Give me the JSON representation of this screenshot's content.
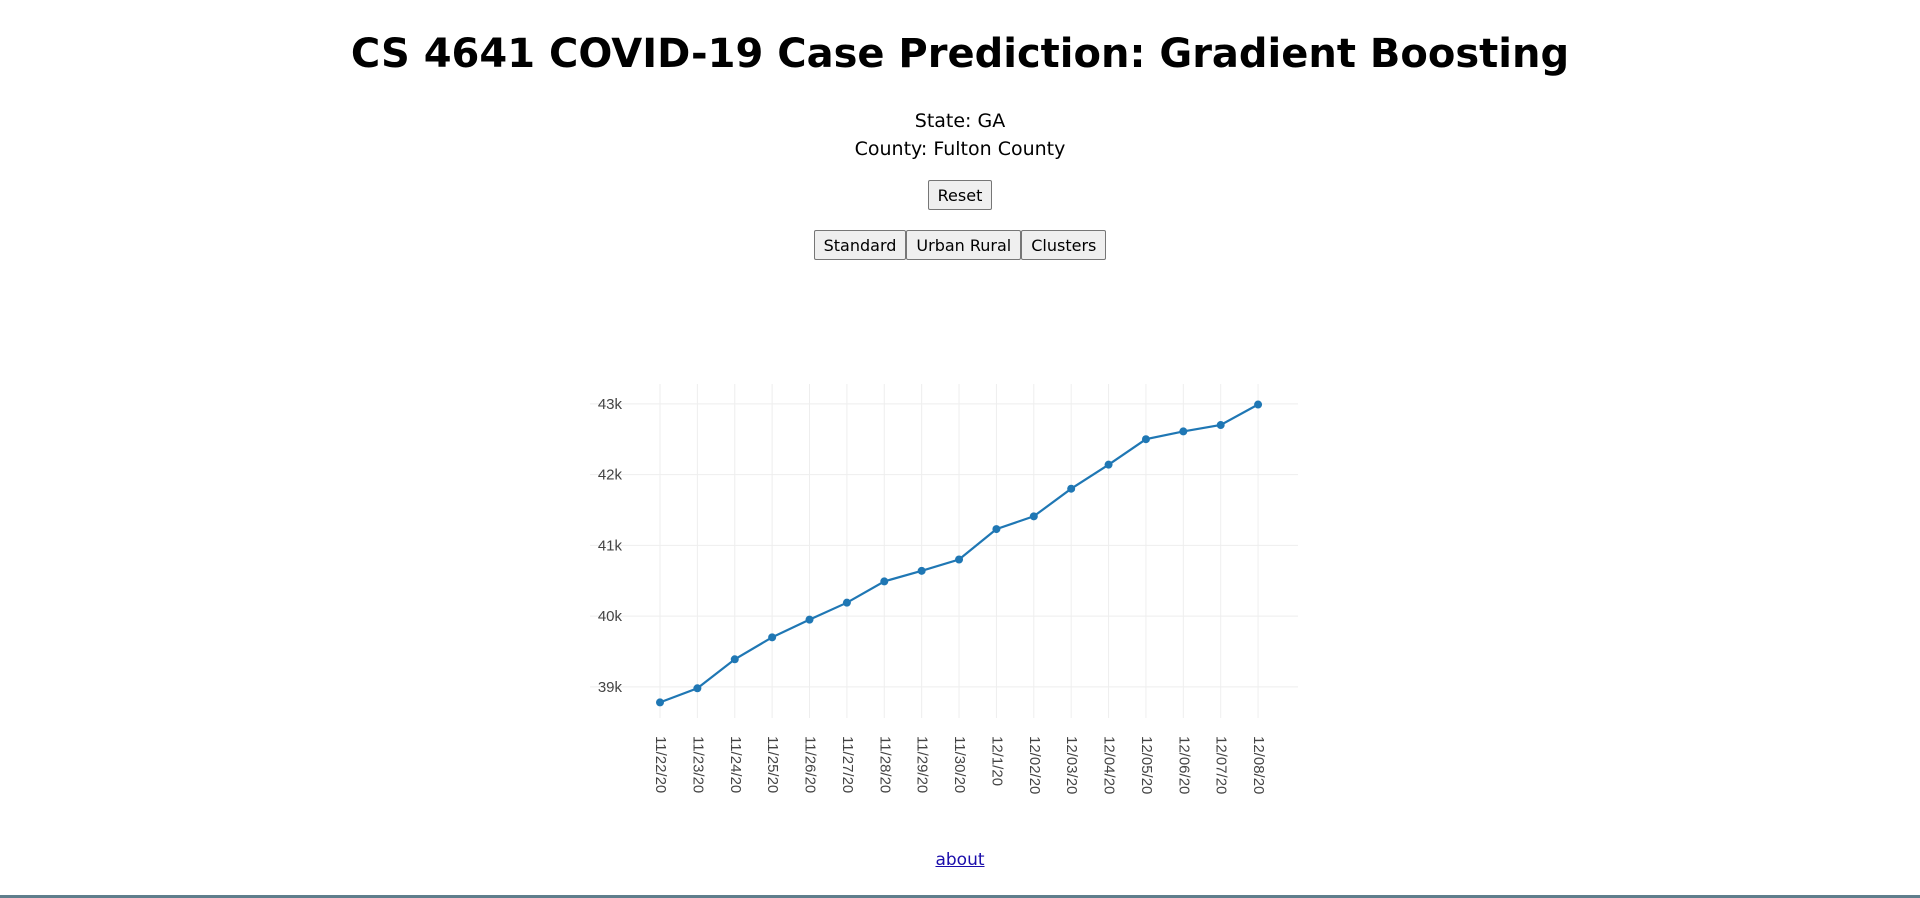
{
  "header": {
    "title": "CS 4641 COVID-19 Case Prediction: Gradient Boosting",
    "state_label": "State: GA",
    "county_label": "County: Fulton County"
  },
  "controls": {
    "reset_label": "Reset",
    "modes": [
      "Standard",
      "Urban Rural",
      "Clusters"
    ]
  },
  "footer": {
    "about_label": "about"
  },
  "colors": {
    "line": "#1f77b4",
    "grid": "#eeeeee",
    "bottom_bar": "#5f7e8c"
  },
  "chart_data": {
    "type": "line",
    "x": [
      "11/22/20",
      "11/23/20",
      "11/24/20",
      "11/25/20",
      "11/26/20",
      "11/27/20",
      "11/28/20",
      "11/29/20",
      "11/30/20",
      "12/1/20",
      "12/02/20",
      "12/03/20",
      "12/04/20",
      "12/05/20",
      "12/06/20",
      "12/07/20",
      "12/08/20"
    ],
    "series": [
      {
        "values": [
          38780,
          38980,
          39390,
          39700,
          39950,
          40190,
          40490,
          40640,
          40800,
          41230,
          41410,
          41800,
          42140,
          42500,
          42610,
          42700,
          42990
        ]
      }
    ],
    "y_ticks": [
      39000,
      40000,
      41000,
      42000,
      43000
    ],
    "y_tick_labels": [
      "39k",
      "40k",
      "41k",
      "42k",
      "43k"
    ],
    "ylim": [
      38560,
      43280
    ],
    "grid": true,
    "title": "",
    "xlabel": "",
    "ylabel": ""
  }
}
